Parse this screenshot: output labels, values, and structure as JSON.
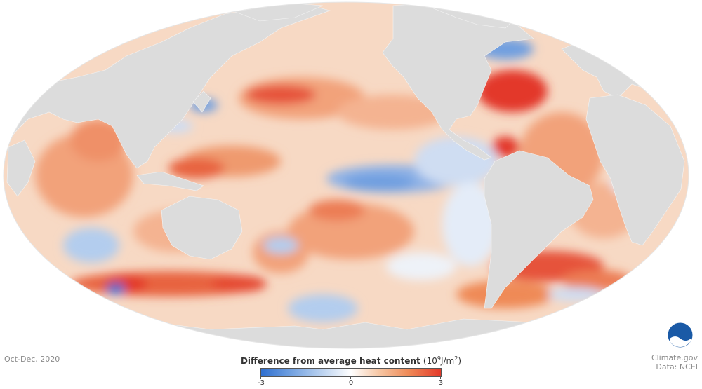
{
  "period": "Oct-Dec, 2020",
  "legend": {
    "title": "Difference from average heat content",
    "units_prefix": "(10",
    "units_exp1": "9",
    "units_mid": "J/m",
    "units_exp2": "2",
    "units_suffix": ")",
    "min_label": "-3",
    "mid_label": "0",
    "max_label": "3",
    "colors": [
      "#2f6fcf",
      "#ffffff",
      "#e3392a"
    ]
  },
  "credit": {
    "source": "Climate.gov",
    "data": "Data: NCEI"
  },
  "logo": {
    "icon": "noaa-logo-icon"
  }
}
